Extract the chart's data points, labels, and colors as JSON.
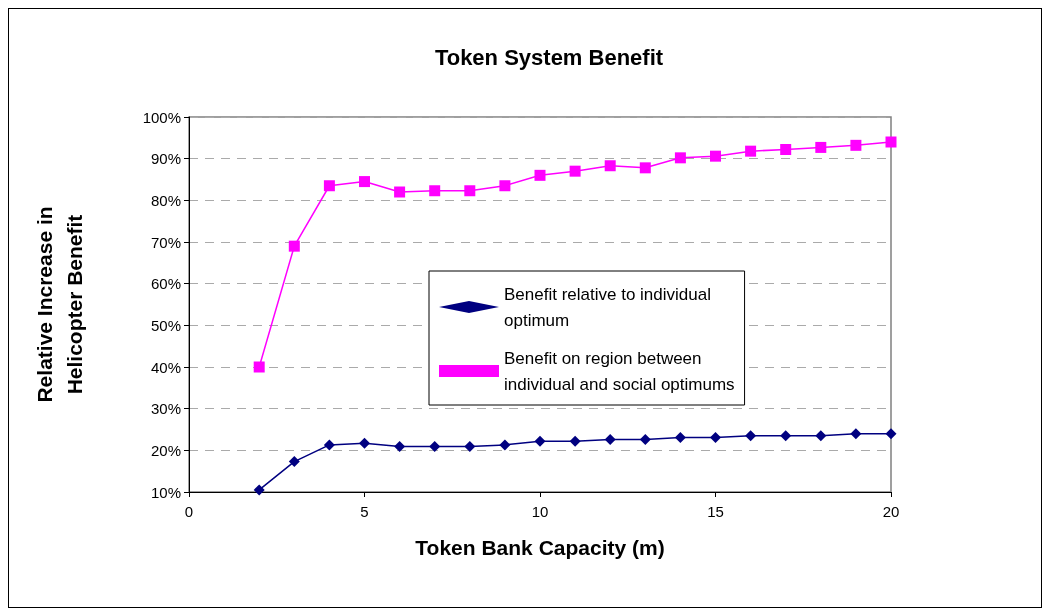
{
  "chart_data": {
    "type": "line",
    "title": "Token System Benefit",
    "xlabel": "Token Bank Capacity (m)",
    "ylabel": "Relative Increase in\nHelicopter Benefit",
    "x": [
      2,
      3,
      4,
      5,
      6,
      7,
      8,
      9,
      10,
      11,
      12,
      13,
      14,
      15,
      16,
      17,
      18,
      19,
      20
    ],
    "series": [
      {
        "name": "Benefit relative to individual\noptimum",
        "color": "#000080",
        "marker": "diamond",
        "values": [
          0.105,
          0.173,
          0.213,
          0.217,
          0.209,
          0.209,
          0.209,
          0.213,
          0.222,
          0.222,
          0.226,
          0.226,
          0.231,
          0.231,
          0.235,
          0.235,
          0.235,
          0.24,
          0.24
        ]
      },
      {
        "name": "Benefit on region between\nindividual and social optimums",
        "color": "#ff00ff",
        "marker": "square",
        "values": [
          0.4,
          0.69,
          0.835,
          0.845,
          0.82,
          0.823,
          0.823,
          0.835,
          0.86,
          0.87,
          0.883,
          0.878,
          0.902,
          0.906,
          0.918,
          0.922,
          0.927,
          0.932,
          0.94
        ]
      }
    ],
    "xlim": [
      0,
      20
    ],
    "xticks": [
      0,
      5,
      10,
      15,
      20
    ],
    "ylim": [
      0.1,
      1
    ],
    "yticks": [
      {
        "value": 0.1,
        "label": "10%"
      },
      {
        "value": 0.2,
        "label": "20%"
      },
      {
        "value": 0.3,
        "label": "30%"
      },
      {
        "value": 0.4,
        "label": "40%"
      },
      {
        "value": 0.5,
        "label": "50%"
      },
      {
        "value": 0.6,
        "label": "60%"
      },
      {
        "value": 0.7,
        "label": "70%"
      },
      {
        "value": 0.8,
        "label": "80%"
      },
      {
        "value": 0.9,
        "label": "90%"
      },
      {
        "value": 1,
        "label": "100%"
      }
    ],
    "grid": "y",
    "legend": "center",
    "line_style": "solid"
  }
}
